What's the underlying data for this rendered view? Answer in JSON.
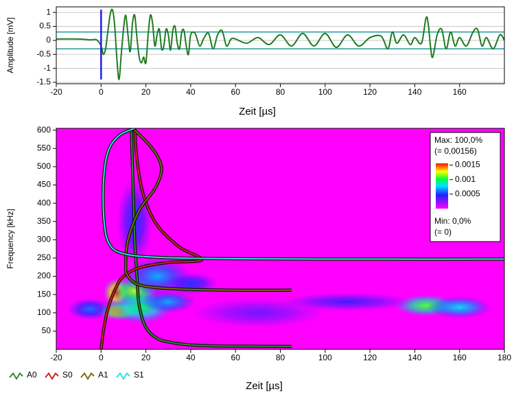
{
  "chart_data": [
    {
      "type": "line",
      "x_label": "Zeit [µs]",
      "y_label": "Amplitude [mV]",
      "xlim": [
        -20,
        180
      ],
      "xticks": [
        -20,
        0,
        20,
        40,
        60,
        80,
        100,
        120,
        140,
        160
      ],
      "ylim": [
        -1.55,
        1.2
      ],
      "yticks": [
        1,
        0.5,
        0,
        -0.5,
        -1,
        -1.5
      ],
      "grid": true,
      "threshold_lines": [
        {
          "value": 0.3,
          "color": "#1a9a9a"
        },
        {
          "value": -0.3,
          "color": "#1a9a9a"
        }
      ],
      "marker_line": {
        "x": 0,
        "ylim": [
          -1.4,
          1.1
        ],
        "color": "#2020e0"
      },
      "series": [
        {
          "color": "#1e7a1e",
          "x": [
            -20,
            -10,
            -5,
            -2,
            0,
            1,
            2,
            3,
            4,
            5,
            6,
            7,
            8,
            9,
            10,
            11,
            12,
            13,
            14,
            15,
            16,
            17,
            18,
            19,
            20,
            21,
            22,
            23,
            24,
            25,
            26,
            27,
            28,
            29,
            30,
            31,
            32,
            33,
            34,
            35,
            36,
            37,
            38,
            39,
            40,
            42,
            44,
            46,
            48,
            50,
            52,
            54,
            56,
            58,
            60,
            65,
            70,
            75,
            80,
            85,
            90,
            95,
            100,
            105,
            110,
            115,
            120,
            125,
            128,
            130,
            132,
            135,
            138,
            140,
            143,
            145,
            146,
            147,
            148,
            150,
            152,
            154,
            156,
            158,
            160,
            163,
            166,
            168,
            170,
            172,
            175,
            178,
            180
          ],
          "values": [
            0.05,
            0.05,
            0.02,
            0.02,
            -0.2,
            -0.5,
            -0.3,
            0.3,
            0.9,
            1.1,
            0.6,
            -0.6,
            -1.4,
            -0.5,
            0.4,
            0.9,
            0.2,
            -0.4,
            0.6,
            0.9,
            0.1,
            -0.6,
            -0.8,
            -0.6,
            -0.8,
            0.2,
            0.9,
            0.6,
            -0.2,
            0.2,
            0.4,
            -0.3,
            -0.2,
            0.4,
            0.2,
            -0.35,
            0.35,
            0.5,
            -0.1,
            -0.3,
            0.3,
            0.35,
            -0.2,
            -0.5,
            0.2,
            0.25,
            -0.2,
            0.1,
            0.25,
            -0.3,
            0.2,
            0.35,
            -0.2,
            0.05,
            0.05,
            -0.1,
            0.1,
            -0.15,
            0.2,
            -0.2,
            0.25,
            -0.2,
            0.25,
            -0.25,
            0.2,
            -0.2,
            0.1,
            0.15,
            -0.3,
            0.3,
            -0.1,
            0.2,
            -0.15,
            0.1,
            -0.1,
            0.8,
            0.6,
            -0.2,
            -0.6,
            0.2,
            0.4,
            -0.3,
            0.3,
            -0.2,
            0.1,
            -0.2,
            0.3,
            0.4,
            -0.2,
            0.1,
            -0.3,
            0.2,
            0
          ]
        }
      ]
    },
    {
      "type": "spectrogram",
      "x_label": "Zeit [µs]",
      "y_label": "Frequency [kHz]",
      "xlim": [
        -20,
        180
      ],
      "xticks": [
        -20,
        0,
        20,
        40,
        60,
        80,
        100,
        120,
        140,
        160,
        180
      ],
      "ylim": [
        0,
        605
      ],
      "yticks": [
        50,
        100,
        150,
        200,
        250,
        300,
        350,
        400,
        450,
        500,
        550,
        600
      ],
      "colorbar": {
        "lim": [
          0,
          0.00156
        ],
        "ticks": [
          0.0015,
          0.001,
          0.0005
        ],
        "max_label": "Max: 100,0%",
        "max_value_label": "(= 0,00156)",
        "min_label": "Min: 0,0%",
        "min_value_label": "(= 0)"
      },
      "intensity": {
        "x": [
          7,
          8,
          18,
          15,
          25,
          30,
          40,
          -5,
          145,
          160,
          110,
          15,
          70
        ],
        "y": [
          155,
          105,
          115,
          160,
          200,
          130,
          180,
          110,
          120,
          115,
          130,
          350,
          100
        ],
        "rx": [
          6,
          10,
          14,
          10,
          15,
          12,
          12,
          10,
          14,
          14,
          30,
          8,
          30
        ],
        "ry": [
          40,
          25,
          45,
          40,
          50,
          30,
          30,
          30,
          30,
          30,
          25,
          120,
          40
        ],
        "values": [
          0.00156,
          0.0014,
          0.001,
          0.0012,
          0.0007,
          0.0007,
          0.0005,
          0.0006,
          0.0011,
          0.0008,
          0.0004,
          0.0005,
          0.0003
        ]
      },
      "series": [
        {
          "name": "A0",
          "color": "#2e8b2e",
          "x": [
            13.5,
            14,
            14.5,
            15,
            16,
            17,
            20,
            25,
            32,
            40,
            55,
            85
          ],
          "values": [
            605,
            500,
            400,
            300,
            200,
            120,
            60,
            30,
            18,
            12,
            9,
            8
          ]
        },
        {
          "name": "S0",
          "color": "#d42020",
          "x": [
            0,
            1,
            3,
            6,
            10,
            18,
            30,
            45,
            35,
            25,
            19,
            16,
            15
          ],
          "values": [
            0,
            50,
            110,
            160,
            200,
            225,
            238,
            245,
            280,
            340,
            420,
            520,
            605
          ]
        },
        {
          "name": "A1",
          "color": "#7a6a10",
          "x": [
            14,
            20,
            25,
            27,
            24,
            17,
            12,
            11,
            12,
            18,
            35,
            60,
            85
          ],
          "values": [
            605,
            570,
            530,
            490,
            440,
            380,
            300,
            230,
            200,
            175,
            165,
            162,
            162
          ]
        },
        {
          "name": "S1",
          "color": "#30e0e0",
          "x": [
            15,
            8,
            3,
            1,
            1.5,
            4,
            10,
            25,
            60,
            120,
            180
          ],
          "values": [
            605,
            585,
            540,
            450,
            340,
            285,
            262,
            252,
            248,
            247,
            247
          ]
        }
      ]
    }
  ]
}
